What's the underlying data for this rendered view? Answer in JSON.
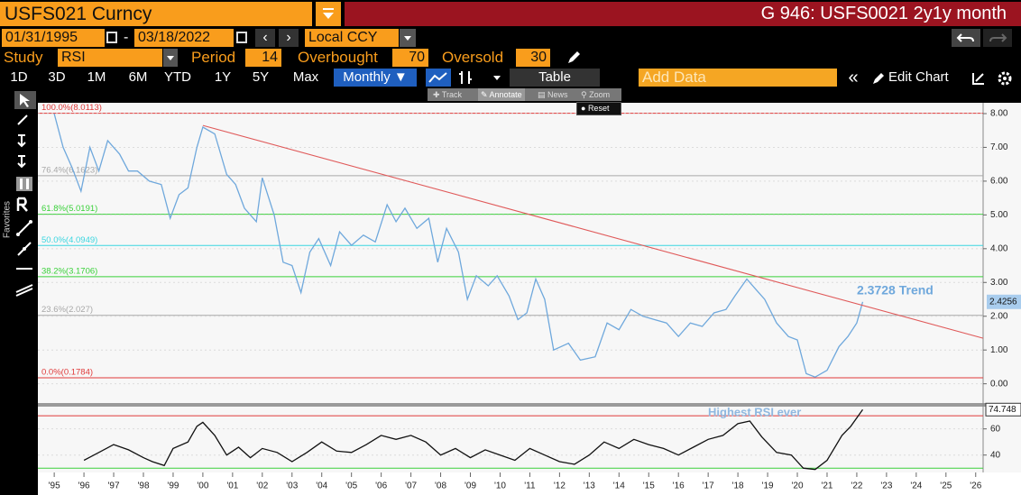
{
  "header": {
    "security": "USFS021 Curncy",
    "title": "G 946: USFS0021 2y1y month"
  },
  "dates": {
    "start": "01/31/1995",
    "separator": "-",
    "end": "03/18/2022",
    "currency": "Local CCY"
  },
  "study": {
    "label": "Study",
    "name": "RSI",
    "period_label": "Period",
    "period": "14",
    "overbought_label": "Overbought",
    "overbought": "70",
    "oversold_label": "Oversold",
    "oversold": "30"
  },
  "toolbar": {
    "ranges": [
      "1D",
      "3D",
      "1M",
      "6M",
      "YTD",
      "1Y",
      "5Y",
      "Max"
    ],
    "frequency": "Monthly ▼",
    "table": "Table",
    "add_data": "Add Data",
    "edit_chart": "Edit Chart"
  },
  "chart_tools": {
    "track": "Track",
    "annotate": "Annotate",
    "news": "News",
    "zoom": "Zoom",
    "reset": "Reset"
  },
  "sidebar": {
    "favorites": "Favorites"
  },
  "chart_data": [
    {
      "type": "line",
      "xlim": [
        1994.45,
        2026.25
      ],
      "ylim": [
        -0.57,
        8.32
      ],
      "yticks": [
        {
          "value": 0,
          "label": "0.00"
        },
        {
          "value": 1,
          "label": "1.00"
        },
        {
          "value": 2,
          "label": "2.00"
        },
        {
          "value": 3,
          "label": "3.00"
        },
        {
          "value": 4,
          "label": "4.00"
        },
        {
          "value": 5,
          "label": "5.00"
        },
        {
          "value": 6,
          "label": "6.00"
        },
        {
          "value": 7,
          "label": "7.00"
        },
        {
          "value": 8,
          "label": "8.00"
        }
      ],
      "levels": [
        {
          "label": "100.0%(8.0113)",
          "value": 8.0113,
          "color": "#e03a3a"
        },
        {
          "label": "76.4%(6.1623)",
          "value": 6.1623,
          "color": "#a8a8a8"
        },
        {
          "label": "61.8%(5.0191)",
          "value": 5.0191,
          "color": "#3ad13a"
        },
        {
          "label": "50.0%(4.0949)",
          "value": 4.0949,
          "color": "#3ad6e0"
        },
        {
          "label": "38.2%(3.1706)",
          "value": 3.1706,
          "color": "#3ad13a"
        },
        {
          "label": "23.6%(2.027)",
          "value": 2.027,
          "color": "#a8a8a8"
        },
        {
          "label": "0.0%(0.1784)",
          "value": 0.1784,
          "color": "#e03a3a"
        }
      ],
      "series": [
        {
          "color": "#6fa8dc",
          "x": [
            1995.0,
            1995.3,
            1995.6,
            1995.9,
            1996.2,
            1996.5,
            1996.8,
            1997.2,
            1997.5,
            1997.8,
            1998.2,
            1998.6,
            1998.9,
            1999.2,
            1999.5,
            1999.8,
            2000.0,
            2000.4,
            2000.8,
            2001.1,
            2001.4,
            2001.8,
            2002.0,
            2002.4,
            2002.7,
            2003.0,
            2003.3,
            2003.6,
            2003.9,
            2004.3,
            2004.6,
            2005.0,
            2005.4,
            2005.8,
            2006.2,
            2006.5,
            2006.8,
            2007.2,
            2007.6,
            2007.9,
            2008.2,
            2008.6,
            2008.9,
            2009.2,
            2009.6,
            2009.9,
            2010.3,
            2010.6,
            2010.9,
            2011.2,
            2011.5,
            2011.8,
            2012.3,
            2012.7,
            2013.2,
            2013.6,
            2014.0,
            2014.4,
            2014.8,
            2015.2,
            2015.6,
            2016.0,
            2016.4,
            2016.8,
            2017.2,
            2017.6,
            2017.9,
            2018.3,
            2018.6,
            2018.9,
            2019.3,
            2019.7,
            2020.0,
            2020.3,
            2020.6,
            2021.0,
            2021.4,
            2021.7,
            2022.0,
            2022.2
          ],
          "values": [
            8.0,
            7.0,
            6.4,
            5.7,
            7.0,
            6.3,
            7.2,
            6.8,
            6.3,
            6.3,
            6.0,
            5.9,
            4.9,
            5.6,
            5.8,
            7.0,
            7.6,
            7.4,
            6.2,
            5.9,
            5.2,
            4.8,
            6.1,
            5.0,
            3.6,
            3.5,
            2.7,
            3.9,
            4.3,
            3.5,
            4.5,
            4.1,
            4.4,
            4.2,
            5.3,
            4.8,
            5.2,
            4.6,
            4.9,
            3.6,
            4.6,
            3.9,
            2.5,
            3.2,
            2.9,
            3.2,
            2.6,
            1.9,
            2.1,
            3.1,
            2.5,
            1.0,
            1.2,
            0.7,
            0.8,
            1.8,
            1.6,
            2.2,
            2.0,
            1.9,
            1.8,
            1.4,
            1.8,
            1.7,
            2.1,
            2.2,
            2.6,
            3.1,
            2.8,
            2.5,
            1.8,
            1.4,
            1.3,
            0.3,
            0.2,
            0.4,
            1.1,
            1.4,
            1.8,
            2.4256
          ]
        },
        {
          "color": "#e05a5a",
          "x": [
            2000.0,
            2026.25
          ],
          "values": [
            7.65,
            1.35
          ]
        }
      ],
      "annotation": "2.3728 Trend",
      "last_value": 2.4256
    },
    {
      "type": "line",
      "xlim": [
        1994.45,
        2026.25
      ],
      "ylim": [
        26.7,
        77
      ],
      "xticks": [
        {
          "value": 1995,
          "label": "'95"
        },
        {
          "value": 1996,
          "label": "'96"
        },
        {
          "value": 1997,
          "label": "'97"
        },
        {
          "value": 1998,
          "label": "'98"
        },
        {
          "value": 1999,
          "label": "'99"
        },
        {
          "value": 2000,
          "label": "'00"
        },
        {
          "value": 2001,
          "label": "'01"
        },
        {
          "value": 2002,
          "label": "'02"
        },
        {
          "value": 2003,
          "label": "'03"
        },
        {
          "value": 2004,
          "label": "'04"
        },
        {
          "value": 2005,
          "label": "'05"
        },
        {
          "value": 2006,
          "label": "'06"
        },
        {
          "value": 2007,
          "label": "'07"
        },
        {
          "value": 2008,
          "label": "'08"
        },
        {
          "value": 2009,
          "label": "'09"
        },
        {
          "value": 2010,
          "label": "'10"
        },
        {
          "value": 2011,
          "label": "'11"
        },
        {
          "value": 2012,
          "label": "'12"
        },
        {
          "value": 2013,
          "label": "'13"
        },
        {
          "value": 2014,
          "label": "'14"
        },
        {
          "value": 2015,
          "label": "'15"
        },
        {
          "value": 2016,
          "label": "'16"
        },
        {
          "value": 2017,
          "label": "'17"
        },
        {
          "value": 2018,
          "label": "'18"
        },
        {
          "value": 2019,
          "label": "'19"
        },
        {
          "value": 2020,
          "label": "'20"
        },
        {
          "value": 2021,
          "label": "'21"
        },
        {
          "value": 2022,
          "label": "'22"
        },
        {
          "value": 2023,
          "label": "'23"
        },
        {
          "value": 2024,
          "label": "'24"
        },
        {
          "value": 2025,
          "label": "'25"
        },
        {
          "value": 2026,
          "label": "'26"
        }
      ],
      "yticks": [
        40,
        60
      ],
      "hlines": [
        {
          "value": 70,
          "color": "#e03a3a"
        },
        {
          "value": 30,
          "color": "#3ad13a"
        }
      ],
      "series": [
        {
          "color": "#111111",
          "x": [
            1996.0,
            1996.5,
            1997.0,
            1997.5,
            1998.0,
            1998.3,
            1998.7,
            1999.0,
            1999.5,
            1999.8,
            2000.0,
            2000.4,
            2000.8,
            2001.2,
            2001.6,
            2002.0,
            2002.5,
            2003.0,
            2003.5,
            2004.0,
            2004.5,
            2005.0,
            2005.5,
            2006.0,
            2006.5,
            2007.0,
            2007.5,
            2008.0,
            2008.5,
            2009.0,
            2009.5,
            2010.0,
            2010.5,
            2011.0,
            2011.5,
            2012.0,
            2012.5,
            2013.0,
            2013.5,
            2014.0,
            2014.5,
            2015.0,
            2015.5,
            2016.0,
            2016.5,
            2017.0,
            2017.5,
            2018.0,
            2018.4,
            2018.8,
            2019.3,
            2019.8,
            2020.2,
            2020.6,
            2021.0,
            2021.5,
            2021.8,
            2022.2
          ],
          "values": [
            36,
            42,
            48,
            44,
            38,
            35,
            32,
            45,
            50,
            62,
            65,
            55,
            40,
            46,
            38,
            45,
            42,
            35,
            42,
            50,
            43,
            42,
            48,
            55,
            52,
            55,
            50,
            40,
            45,
            38,
            44,
            40,
            36,
            45,
            40,
            35,
            33,
            40,
            50,
            45,
            52,
            48,
            45,
            40,
            46,
            52,
            55,
            64,
            66,
            54,
            42,
            40,
            30,
            29,
            36,
            55,
            62,
            74.748
          ]
        }
      ],
      "annotation": "Highest RSI ever",
      "last_value": 74.748
    }
  ]
}
